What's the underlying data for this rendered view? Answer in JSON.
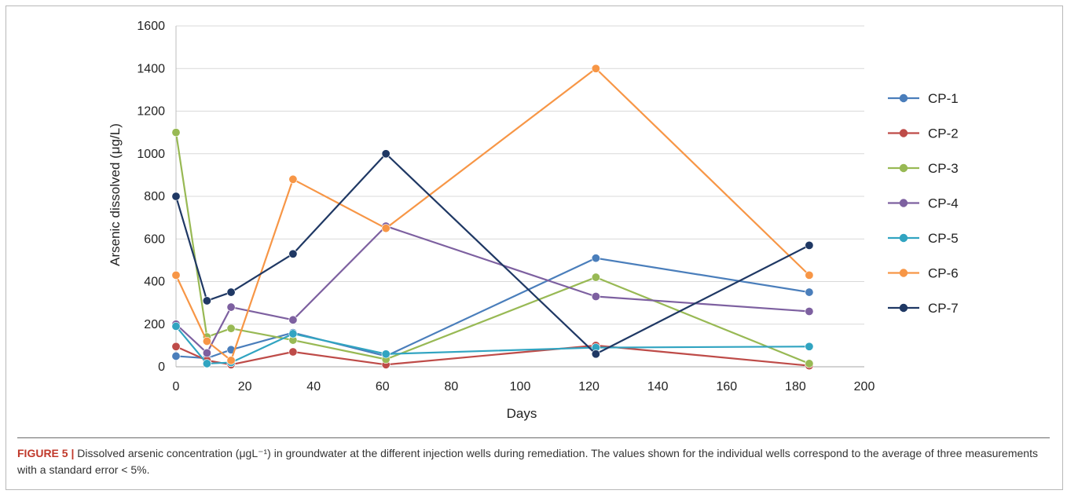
{
  "chart_data": {
    "type": "line",
    "ylabel": "Arsenic dissolved (μg/L)",
    "xlabel": "Days",
    "xlim": [
      0,
      200
    ],
    "ylim": [
      0,
      1600
    ],
    "x_ticks": [
      "0",
      "20",
      "40",
      "60",
      "80",
      "100",
      "120",
      "140",
      "160",
      "180",
      "200"
    ],
    "y_ticks": [
      "0",
      "200",
      "400",
      "600",
      "800",
      "1000",
      "1200",
      "1400",
      "1600"
    ],
    "grid": "horizontal",
    "legend_position": "right",
    "series": [
      {
        "name": "CP-1",
        "color": "#4a7ebb",
        "x": [
          0,
          9,
          16,
          34,
          61,
          122,
          184
        ],
        "values": [
          50,
          40,
          80,
          160,
          50,
          510,
          350
        ]
      },
      {
        "name": "CP-2",
        "color": "#be4b48",
        "x": [
          0,
          9,
          16,
          34,
          61,
          122,
          184
        ],
        "values": [
          95,
          30,
          10,
          70,
          10,
          100,
          5
        ]
      },
      {
        "name": "CP-3",
        "color": "#98b954",
        "x": [
          0,
          9,
          16,
          34,
          61,
          122,
          184
        ],
        "values": [
          1100,
          140,
          180,
          125,
          35,
          420,
          15
        ]
      },
      {
        "name": "CP-4",
        "color": "#7d60a0",
        "x": [
          0,
          9,
          16,
          34,
          61,
          122,
          184
        ],
        "values": [
          200,
          65,
          280,
          220,
          660,
          330,
          260
        ]
      },
      {
        "name": "CP-5",
        "color": "#31a4c1",
        "x": [
          0,
          9,
          16,
          34,
          61,
          122,
          184
        ],
        "values": [
          190,
          15,
          20,
          155,
          60,
          90,
          95
        ]
      },
      {
        "name": "CP-6",
        "color": "#f79646",
        "x": [
          0,
          9,
          16,
          34,
          61,
          122,
          184
        ],
        "values": [
          430,
          120,
          30,
          880,
          650,
          1400,
          430
        ]
      },
      {
        "name": "CP-7",
        "color": "#1f3864",
        "x": [
          0,
          9,
          16,
          34,
          61,
          122,
          184
        ],
        "values": [
          800,
          310,
          350,
          530,
          1000,
          60,
          570
        ]
      }
    ]
  },
  "caption": {
    "label": "FIGURE 5 |",
    "text": "Dissolved arsenic concentration (μgL⁻¹) in groundwater at the different injection wells during remediation. The values shown for the individual wells correspond to the average of three measurements with a standard error < 5%."
  }
}
